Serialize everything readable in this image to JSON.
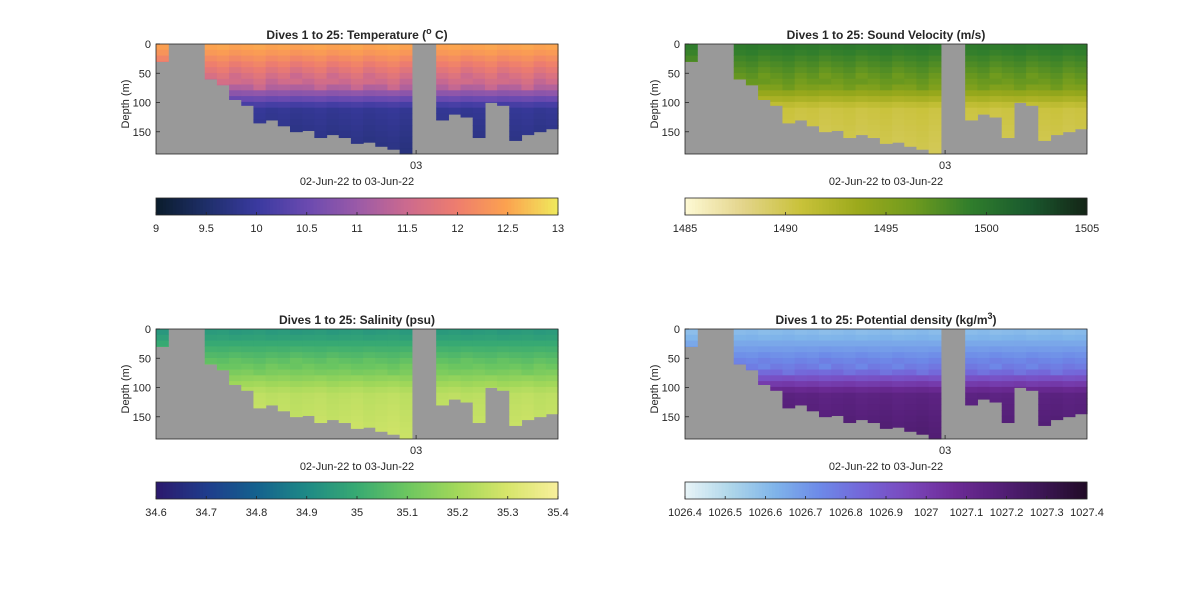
{
  "x_tick_label": "03",
  "xlabel": "02-Jun-22 to 03-Jun-22",
  "ylabel": "Depth (m)",
  "chart_data": [
    {
      "type": "heatmap",
      "title_main": "Dives 1 to 25: Temperature (",
      "title_sup": "o",
      "title_tail": " C)",
      "ylabel": "Depth (m)",
      "xlabel": "02-Jun-22 to 03-Jun-22",
      "x_ticks": [
        "03"
      ],
      "y_ticks": [
        0,
        50,
        100,
        150
      ],
      "ylim": [
        0,
        188
      ],
      "grid": false,
      "colorbar": {
        "min": 9,
        "max": 13,
        "ticks": [
          "9",
          "9.5",
          "10",
          "10.5",
          "11",
          "11.5",
          "12",
          "12.5",
          "13"
        ],
        "colors": [
          "#0b1d2e",
          "#1f2f6b",
          "#3a3aa0",
          "#6a4ab0",
          "#9a5aa8",
          "#cc6a8e",
          "#ee7d6e",
          "#fca24f",
          "#f0e85c"
        ]
      },
      "surface_value": 12.5,
      "mid_value": 11.4,
      "deep_value": 9.9,
      "bottom_value": 9.7,
      "gap_color": "#999999"
    },
    {
      "type": "heatmap",
      "title_main": "Dives 1 to 25: Sound Velocity (m/s)",
      "title_sup": "",
      "title_tail": "",
      "ylabel": "Depth (m)",
      "xlabel": "02-Jun-22 to 03-Jun-22",
      "x_ticks": [
        "03"
      ],
      "y_ticks": [
        0,
        50,
        100,
        150
      ],
      "ylim": [
        0,
        188
      ],
      "grid": false,
      "colorbar": {
        "min": 1485,
        "max": 1505,
        "ticks": [
          "1485",
          "1490",
          "1495",
          "1500",
          "1505"
        ],
        "colors": [
          "#fdf8d2",
          "#e3d48a",
          "#c9c23a",
          "#9caa1c",
          "#6e9a1e",
          "#2f7d2c",
          "#1a5a2e",
          "#142617"
        ]
      },
      "surface_value": 1499.5,
      "mid_value": 1496.0,
      "deep_value": 1490.5,
      "bottom_value": 1489.8,
      "gap_color": "#999999"
    },
    {
      "type": "heatmap",
      "title_main": "Dives 1 to 25: Salinity (psu)",
      "title_sup": "",
      "title_tail": "",
      "ylabel": "Depth (m)",
      "xlabel": "02-Jun-22 to 03-Jun-22",
      "x_ticks": [
        "03"
      ],
      "y_ticks": [
        0,
        50,
        100,
        150
      ],
      "ylim": [
        0,
        188
      ],
      "grid": false,
      "colorbar": {
        "min": 34.6,
        "max": 35.4,
        "ticks": [
          "34.6",
          "34.7",
          "34.8",
          "34.9",
          "35",
          "35.1",
          "35.2",
          "35.3",
          "35.4"
        ],
        "colors": [
          "#2b1a6e",
          "#1f3d8c",
          "#14628e",
          "#1e8a86",
          "#38aa72",
          "#6cc660",
          "#a2d85a",
          "#d6e56a",
          "#f7ef9a"
        ]
      },
      "surface_value": 34.95,
      "mid_value": 35.12,
      "deep_value": 35.25,
      "bottom_value": 35.28,
      "gap_color": "#999999"
    },
    {
      "type": "heatmap",
      "title_main": "Dives 1 to 25: Potential density (kg/m",
      "title_sup": "3",
      "title_tail": ")",
      "ylabel": "Depth (m)",
      "xlabel": "02-Jun-22 to 03-Jun-22",
      "x_ticks": [
        "03"
      ],
      "y_ticks": [
        0,
        50,
        100,
        150
      ],
      "ylim": [
        0,
        188
      ],
      "grid": false,
      "colorbar": {
        "min": 1026.4,
        "max": 1027.4,
        "ticks": [
          "1026.4",
          "1026.5",
          "1026.6",
          "1026.7",
          "1026.8",
          "1026.9",
          "1027",
          "1027.1",
          "1027.2",
          "1027.3",
          "1027.4"
        ],
        "colors": [
          "#e6f3f7",
          "#aed6ea",
          "#7fb4ea",
          "#6d8ae8",
          "#7465d8",
          "#7a48bc",
          "#6e2c98",
          "#56207a",
          "#3c1655",
          "#220b28"
        ]
      },
      "surface_value": 1026.6,
      "mid_value": 1026.8,
      "deep_value": 1027.15,
      "bottom_value": 1027.2,
      "gap_color": "#999999"
    }
  ]
}
